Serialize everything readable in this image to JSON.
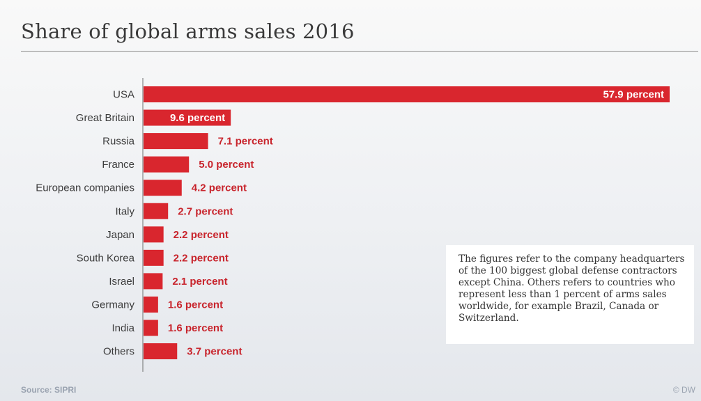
{
  "chart_data": {
    "type": "bar",
    "orientation": "horizontal",
    "title": "Share of global arms sales 2016",
    "categories": [
      "USA",
      "Great Britain",
      "Russia",
      "France",
      "European companies",
      "Italy",
      "Japan",
      "South Korea",
      "Israel",
      "Germany",
      "India",
      "Others"
    ],
    "values": [
      57.9,
      9.6,
      7.1,
      5.0,
      4.2,
      2.7,
      2.2,
      2.2,
      2.1,
      1.6,
      1.6,
      3.7
    ],
    "value_labels": [
      "57.9 percent",
      "9.6 percent",
      "7.1 percent",
      "5.0 percent",
      "4.2 percent",
      "2.7 percent",
      "2.2 percent",
      "2.2 percent",
      "2.1 percent",
      "1.6 percent",
      "1.6 percent",
      "3.7 percent"
    ],
    "unit": "percent",
    "xlim": [
      0,
      57.9
    ],
    "grid": false,
    "legend": "none",
    "bar_color": "#d9262e",
    "label_color": "#c8242c"
  },
  "note": "The figures refer to the company headquarters of the 100 biggest global defense contractors except China. Others refers to countries who represent less than 1 percent of arms sales worldwide, for example Brazil, Canada or Switzerland.",
  "source": "Source: SIPRI",
  "copyright": "© DW"
}
